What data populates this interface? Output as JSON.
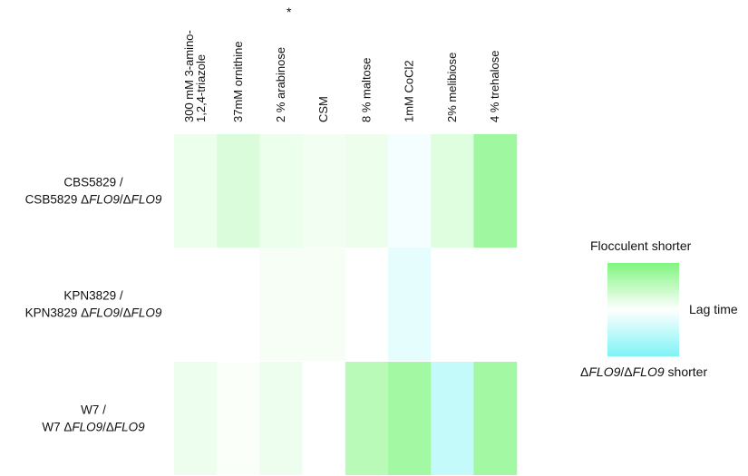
{
  "chart_data": {
    "type": "heatmap",
    "title": "",
    "columns": [
      {
        "label": "300 mM 3-amino-",
        "label2": "1,2,4-triazole"
      },
      {
        "label": "37mM ornithine",
        "label2": ""
      },
      {
        "label": "2 % arabinose",
        "label2": ""
      },
      {
        "label": "CSM",
        "label2": ""
      },
      {
        "label": "8 % maltose",
        "label2": ""
      },
      {
        "label": "1mM CoCl2",
        "label2": ""
      },
      {
        "label": "2% melibiose",
        "label2": ""
      },
      {
        "label": "4 % trehalose",
        "label2": ""
      }
    ],
    "column_annotation": {
      "column_index": 2,
      "text": "*"
    },
    "rows": [
      {
        "line1": "CBS5829 /",
        "line2_prefix": "CSB5829 Δ",
        "line2_italic1": "FLO9",
        "line2_mid": "/Δ",
        "line2_italic2": "FLO9"
      },
      {
        "line1": "KPN3829 /",
        "line2_prefix": "KPN3829 Δ",
        "line2_italic1": "FLO9",
        "line2_mid": "/Δ",
        "line2_italic2": "FLO9"
      },
      {
        "line1": "W7 /",
        "line2_prefix": "W7 Δ",
        "line2_italic1": "FLO9",
        "line2_mid": "/Δ",
        "line2_italic2": "FLO9"
      }
    ],
    "values": [
      [
        0.15,
        0.28,
        0.15,
        0.1,
        0.14,
        -0.08,
        0.25,
        0.75
      ],
      [
        0.0,
        0.0,
        0.07,
        0.07,
        0.0,
        -0.2,
        0.0,
        0.0
      ],
      [
        0.13,
        0.04,
        0.13,
        0.0,
        0.55,
        0.72,
        -0.45,
        0.72
      ]
    ],
    "value_range": [
      -1,
      1
    ],
    "colors": {
      "positive": "#7ff57f",
      "neutral": "#ffffff",
      "negative": "#7ff3f5"
    },
    "legend": {
      "placement": "right",
      "top_label": "Flocculent shorter",
      "middle_label": "Lag time",
      "bottom_prefix": "Δ",
      "bottom_italic1": "FLO9",
      "bottom_mid": "/Δ",
      "bottom_italic2": "FLO9",
      "bottom_suffix": " shorter"
    }
  }
}
